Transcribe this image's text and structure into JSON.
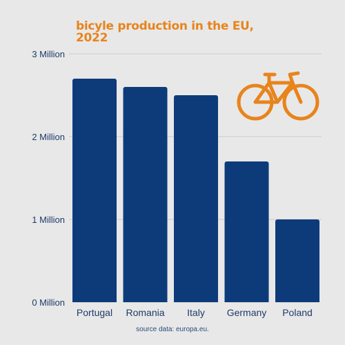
{
  "colors": {
    "background": "#e8e8e8",
    "bar": "#0d3b7a",
    "title": "#e8841c",
    "axis_text": "#1f3a68",
    "gridline": "#c9ccd3",
    "source_text": "#2a4a7a"
  },
  "icon": "bicycle-icon",
  "source_note": "source data: europa.eu.",
  "chart_data": {
    "type": "bar",
    "title_lines": [
      "bicyle production in the EU,",
      "2022"
    ],
    "categories": [
      "Portugal",
      "Romania",
      "Italy",
      "Germany",
      "Poland"
    ],
    "values": [
      2700000,
      2600000,
      2500000,
      1700000,
      1000000
    ],
    "ylim": [
      0,
      3000000
    ],
    "y_ticks": [
      0,
      1000000,
      2000000,
      3000000
    ],
    "y_tick_labels": [
      "0 Million",
      "1 Million",
      "2 Million",
      "3 Million"
    ],
    "grid": true,
    "xlabel": "",
    "ylabel": ""
  }
}
